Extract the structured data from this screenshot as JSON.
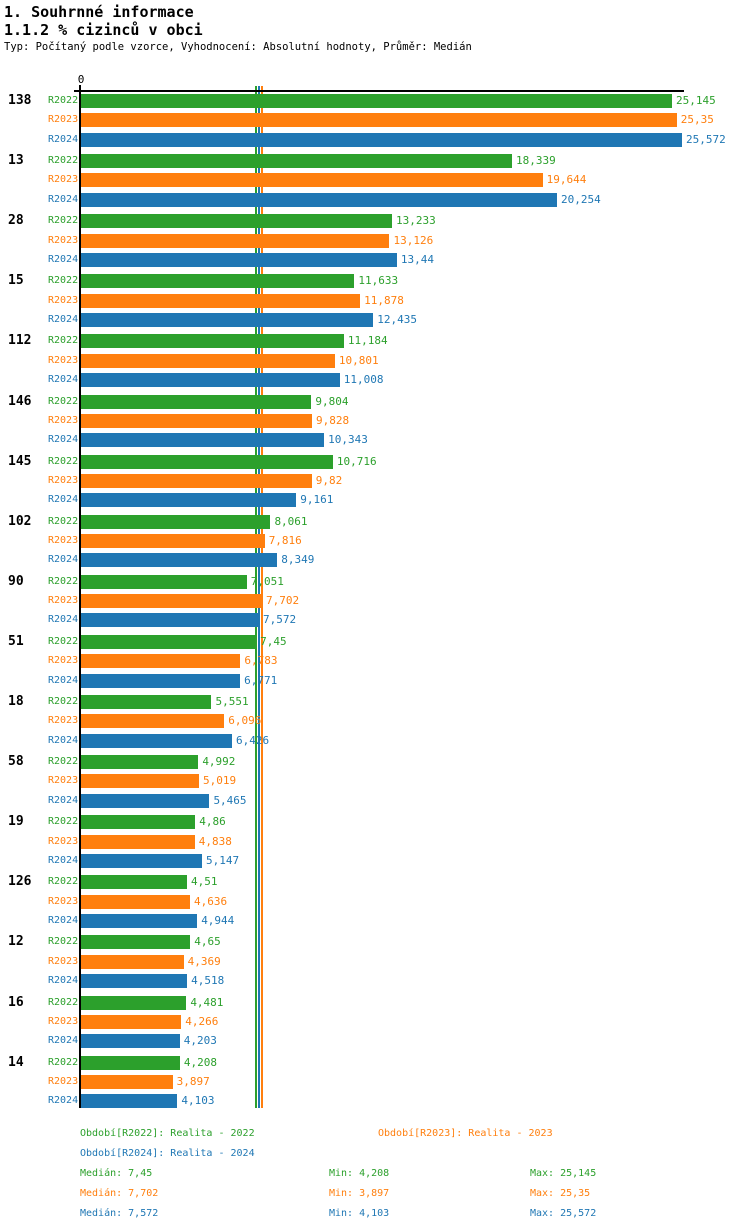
{
  "header": {
    "title": "1. Souhrnné informace",
    "subtitle": "1.1.2 % cizinců v obci",
    "meta": "Typ: Počítaný podle vzorce, Vyhodnocení: Absolutní hodnoty, Průměr: Medián"
  },
  "chart_data": {
    "type": "bar",
    "orientation": "horizontal",
    "title": "1.1.2 % cizinců v obci",
    "zero_label": "0",
    "xlim": [
      0,
      25.572
    ],
    "grid": false,
    "decimal_separator": ",",
    "series": [
      {
        "name": "R2022",
        "color": "#2ca02c",
        "period_label": "Období[R2022]: Realita - 2022",
        "median": 7.45,
        "min": 4.208,
        "max": 25.145
      },
      {
        "name": "R2023",
        "color": "#ff7f0e",
        "period_label": "Období[R2023]: Realita - 2023",
        "median": 7.702,
        "min": 3.897,
        "max": 25.35
      },
      {
        "name": "R2024",
        "color": "#1f77b4",
        "period_label": "Období[R2024]: Realita - 2024",
        "median": 7.572,
        "min": 4.103,
        "max": 25.572
      }
    ],
    "groups": [
      {
        "category": "138",
        "values": [
          25.145,
          25.35,
          25.572
        ],
        "labels": [
          "25,145",
          "25,35",
          "25,572"
        ]
      },
      {
        "category": "13",
        "values": [
          18.339,
          19.644,
          20.254
        ],
        "labels": [
          "18,339",
          "19,644",
          "20,254"
        ]
      },
      {
        "category": "28",
        "values": [
          13.233,
          13.126,
          13.44
        ],
        "labels": [
          "13,233",
          "13,126",
          "13,44"
        ]
      },
      {
        "category": "15",
        "values": [
          11.633,
          11.878,
          12.435
        ],
        "labels": [
          "11,633",
          "11,878",
          "12,435"
        ]
      },
      {
        "category": "112",
        "values": [
          11.184,
          10.801,
          11.008
        ],
        "labels": [
          "11,184",
          "10,801",
          "11,008"
        ]
      },
      {
        "category": "146",
        "values": [
          9.804,
          9.828,
          10.343
        ],
        "labels": [
          "9,804",
          "9,828",
          "10,343"
        ]
      },
      {
        "category": "145",
        "values": [
          10.716,
          9.82,
          9.161
        ],
        "labels": [
          "10,716",
          "9,82",
          "9,161"
        ]
      },
      {
        "category": "102",
        "values": [
          8.061,
          7.816,
          8.349
        ],
        "labels": [
          "8,061",
          "7,816",
          "8,349"
        ]
      },
      {
        "category": "90",
        "values": [
          7.051,
          7.702,
          7.572
        ],
        "labels": [
          "7,051",
          "7,702",
          "7,572"
        ]
      },
      {
        "category": "51",
        "values": [
          7.45,
          6.783,
          6.771
        ],
        "labels": [
          "7,45",
          "6,783",
          "6,771"
        ]
      },
      {
        "category": "18",
        "values": [
          5.551,
          6.096,
          6.426
        ],
        "labels": [
          "5,551",
          "6,096",
          "6,426"
        ]
      },
      {
        "category": "58",
        "values": [
          4.992,
          5.019,
          5.465
        ],
        "labels": [
          "4,992",
          "5,019",
          "5,465"
        ]
      },
      {
        "category": "19",
        "values": [
          4.86,
          4.838,
          5.147
        ],
        "labels": [
          "4,86",
          "4,838",
          "5,147"
        ]
      },
      {
        "category": "126",
        "values": [
          4.51,
          4.636,
          4.944
        ],
        "labels": [
          "4,51",
          "4,636",
          "4,944"
        ]
      },
      {
        "category": "12",
        "values": [
          4.65,
          4.369,
          4.518
        ],
        "labels": [
          "4,65",
          "4,369",
          "4,518"
        ]
      },
      {
        "category": "16",
        "values": [
          4.481,
          4.266,
          4.203
        ],
        "labels": [
          "4,481",
          "4,266",
          "4,203"
        ]
      },
      {
        "category": "14",
        "values": [
          4.208,
          3.897,
          4.103
        ],
        "labels": [
          "4,208",
          "3,897",
          "4,103"
        ]
      }
    ]
  },
  "legend": {
    "periods": [
      "Období[R2022]: Realita - 2022",
      "Období[R2023]: Realita - 2023",
      "Období[R2024]: Realita - 2024"
    ],
    "stats": [
      {
        "median": "Medián: 7,45",
        "min": "Min: 4,208",
        "max": "Max: 25,145"
      },
      {
        "median": "Medián: 7,702",
        "min": "Min: 3,897",
        "max": "Max: 25,35"
      },
      {
        "median": "Medián: 7,572",
        "min": "Min: 4,103",
        "max": "Max: 25,572"
      }
    ]
  }
}
